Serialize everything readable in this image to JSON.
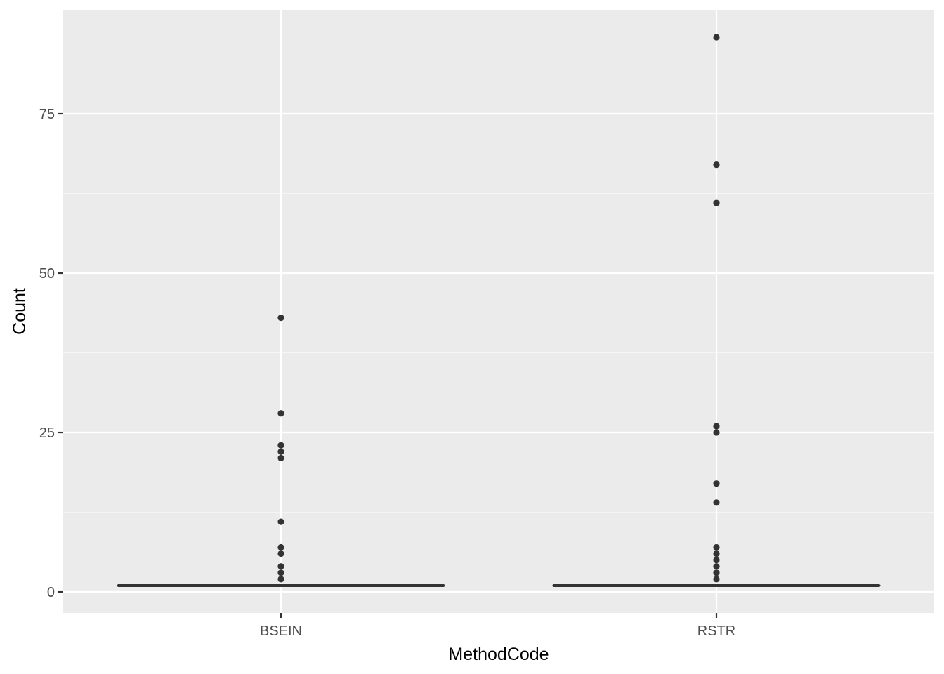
{
  "chart_data": {
    "type": "boxplot",
    "title": "",
    "xlabel": "MethodCode",
    "ylabel": "Count",
    "categories": [
      "BSEIN",
      "RSTR"
    ],
    "ylim": [
      -3.3,
      91.3
    ],
    "y_ticks": [
      0,
      25,
      50,
      75
    ],
    "y_minor_ticks": [
      12.5,
      37.5,
      62.5,
      87.5
    ],
    "grid": true,
    "legend": "none",
    "boxes": [
      {
        "category": "BSEIN",
        "min": 1,
        "q1": 1,
        "median": 1,
        "q3": 1,
        "max": 1,
        "outliers": [
          43,
          28,
          23,
          22,
          21,
          11,
          7,
          6,
          4,
          3,
          2
        ]
      },
      {
        "category": "RSTR",
        "min": 1,
        "q1": 1,
        "median": 1,
        "q3": 1,
        "max": 1,
        "outliers": [
          87,
          67,
          61,
          26,
          25,
          17,
          14,
          7,
          6,
          5,
          4,
          3,
          2
        ]
      }
    ],
    "colors": {
      "panel_background": "#ebebeb",
      "grid_major": "#ffffff",
      "grid_minor": "#f5f5f5",
      "box_line": "#333333",
      "outlier": "#333333",
      "tick_text": "#4d4d4d",
      "axis_title": "#000000"
    }
  }
}
